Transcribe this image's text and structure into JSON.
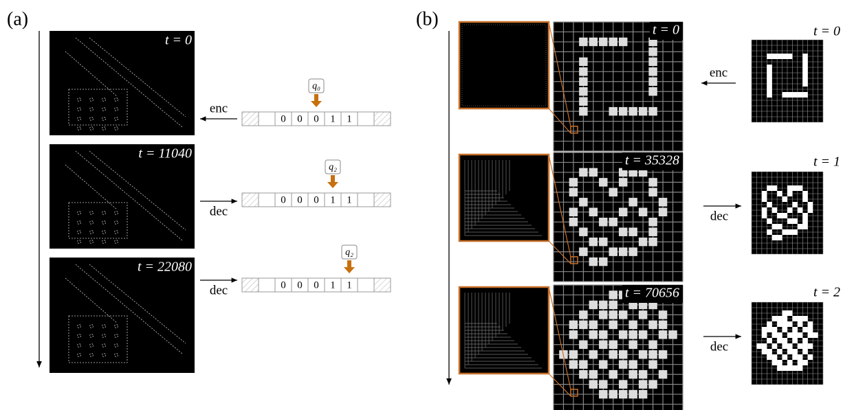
{
  "panel_a": {
    "label": "(a)",
    "frames": [
      "t = 0",
      "t = 11040",
      "t = 22080"
    ],
    "arrows": [
      "enc",
      "dec",
      "dec"
    ],
    "tapes": [
      {
        "cells": [
          "0",
          "0",
          "0",
          "1",
          "1"
        ],
        "head": "q₀"
      },
      {
        "cells": [
          "0",
          "0",
          "0",
          "1",
          "1"
        ],
        "head": "q₂"
      },
      {
        "cells": [
          "0",
          "0",
          "0",
          "1",
          "1"
        ],
        "head": "q₂"
      }
    ]
  },
  "panel_b": {
    "label": "(b)",
    "frames": [
      "t = 0",
      "t = 35328",
      "t = 70656"
    ],
    "grids": [
      {
        "label": "t = 0",
        "arrow": "enc",
        "rows": [
          "000000000000",
          "001111100100",
          "000000000100",
          "001000000100",
          "001000000100",
          "001000000100",
          "001000000100",
          "001000000000",
          "001001111100",
          "000000000000",
          "000000000000",
          "000000000000"
        ]
      },
      {
        "label": "t = 1",
        "arrow": "dec",
        "rows": [
          "000000000000",
          "001100111000",
          "010010100100",
          "010001000100",
          "001000010010",
          "010100101010",
          "010011000100",
          "001000110100",
          "000110001100",
          "001001110000",
          "000110000000",
          "000000000000"
        ]
      },
      {
        "label": "t = 2",
        "arrow": "dec",
        "rows": [
          "000001100000",
          "000111011100",
          "001011101010",
          "011101010110",
          "010110111011",
          "001011010100",
          "110101101110",
          "011010110100",
          "001101011010",
          "000110101100",
          "000011111000",
          "000000000000"
        ]
      }
    ]
  }
}
